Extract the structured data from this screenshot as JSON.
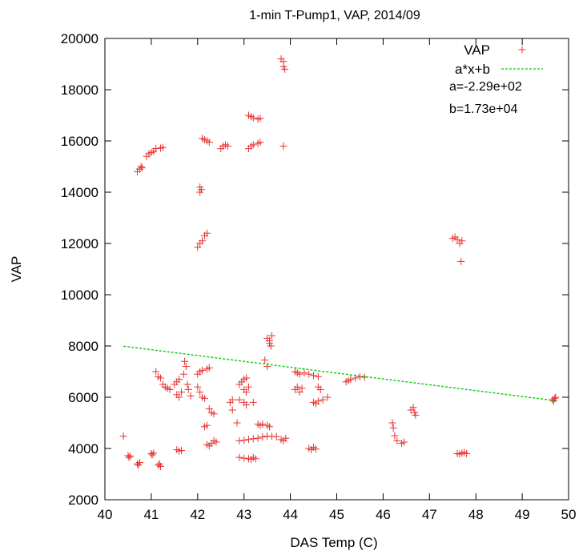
{
  "chart_data": {
    "type": "scatter",
    "title": "1-min T-Pump1, VAP, 2014/09",
    "xlabel": "DAS Temp (C)",
    "ylabel": "VAP",
    "xlim": [
      40,
      50
    ],
    "ylim": [
      2000,
      20000
    ],
    "xticks": [
      "40",
      "41",
      "42",
      "43",
      "44",
      "45",
      "46",
      "47",
      "48",
      "49",
      "50"
    ],
    "yticks": [
      "2000",
      "4000",
      "6000",
      "8000",
      "10000",
      "12000",
      "14000",
      "16000",
      "18000",
      "20000"
    ],
    "grid": false,
    "legend_position": "top-right",
    "series": [
      {
        "name": "VAP",
        "marker": "plus",
        "color": "#e83030",
        "points": [
          [
            40.4,
            4480
          ],
          [
            40.5,
            3720
          ],
          [
            40.52,
            3650
          ],
          [
            40.55,
            3700
          ],
          [
            40.7,
            3400
          ],
          [
            40.72,
            3350
          ],
          [
            40.75,
            3450
          ],
          [
            41.0,
            3800
          ],
          [
            41.02,
            3750
          ],
          [
            41.05,
            3820
          ],
          [
            41.15,
            3350
          ],
          [
            41.2,
            3300
          ],
          [
            41.18,
            3400
          ],
          [
            40.7,
            14800
          ],
          [
            40.75,
            14900
          ],
          [
            40.8,
            14950
          ],
          [
            40.78,
            15000
          ],
          [
            40.9,
            15400
          ],
          [
            40.95,
            15500
          ],
          [
            41.0,
            15550
          ],
          [
            41.05,
            15600
          ],
          [
            41.1,
            15700
          ],
          [
            41.2,
            15720
          ],
          [
            41.25,
            15750
          ],
          [
            41.1,
            7000
          ],
          [
            41.15,
            6800
          ],
          [
            41.2,
            6750
          ],
          [
            41.25,
            6500
          ],
          [
            41.3,
            6400
          ],
          [
            41.35,
            6350
          ],
          [
            41.4,
            6300
          ],
          [
            41.5,
            6500
          ],
          [
            41.55,
            6600
          ],
          [
            41.6,
            6700
          ],
          [
            41.55,
            6100
          ],
          [
            41.6,
            6000
          ],
          [
            41.65,
            6200
          ],
          [
            41.55,
            3950
          ],
          [
            41.6,
            3900
          ],
          [
            41.65,
            3920
          ],
          [
            41.7,
            6900
          ],
          [
            41.75,
            7200
          ],
          [
            41.72,
            7400
          ],
          [
            41.78,
            6500
          ],
          [
            41.8,
            6300
          ],
          [
            41.85,
            6050
          ],
          [
            42.0,
            6900
          ],
          [
            42.05,
            7000
          ],
          [
            42.1,
            7050
          ],
          [
            42.2,
            7100
          ],
          [
            42.25,
            7150
          ],
          [
            42.0,
            6400
          ],
          [
            42.05,
            6200
          ],
          [
            42.1,
            6000
          ],
          [
            42.15,
            5950
          ],
          [
            42.15,
            4850
          ],
          [
            42.2,
            4900
          ],
          [
            42.2,
            4150
          ],
          [
            42.25,
            4100
          ],
          [
            42.3,
            4200
          ],
          [
            42.35,
            4300
          ],
          [
            42.4,
            4250
          ],
          [
            42.25,
            5550
          ],
          [
            42.3,
            5400
          ],
          [
            42.35,
            5350
          ],
          [
            42.0,
            11850
          ],
          [
            42.05,
            12000
          ],
          [
            42.1,
            12100
          ],
          [
            42.15,
            12300
          ],
          [
            42.2,
            12400
          ],
          [
            42.05,
            14000
          ],
          [
            42.05,
            14200
          ],
          [
            42.08,
            14100
          ],
          [
            42.1,
            16100
          ],
          [
            42.15,
            16050
          ],
          [
            42.2,
            16000
          ],
          [
            42.25,
            15950
          ],
          [
            42.5,
            15700
          ],
          [
            42.55,
            15800
          ],
          [
            42.6,
            15850
          ],
          [
            42.65,
            15800
          ],
          [
            42.7,
            5800
          ],
          [
            42.75,
            5900
          ],
          [
            42.75,
            5500
          ],
          [
            42.85,
            5000
          ],
          [
            42.9,
            6500
          ],
          [
            42.95,
            6600
          ],
          [
            43.0,
            6700
          ],
          [
            43.05,
            6750
          ],
          [
            43.0,
            6300
          ],
          [
            43.05,
            6200
          ],
          [
            43.1,
            6400
          ],
          [
            42.9,
            5900
          ],
          [
            43.0,
            5800
          ],
          [
            43.05,
            5700
          ],
          [
            43.2,
            5800
          ],
          [
            42.9,
            4300
          ],
          [
            43.0,
            4320
          ],
          [
            43.1,
            4350
          ],
          [
            43.2,
            4380
          ],
          [
            43.3,
            4400
          ],
          [
            43.4,
            4450
          ],
          [
            43.5,
            4480
          ],
          [
            43.6,
            4470
          ],
          [
            43.7,
            4460
          ],
          [
            42.9,
            3650
          ],
          [
            43.0,
            3620
          ],
          [
            43.1,
            3600
          ],
          [
            43.15,
            3580
          ],
          [
            43.2,
            3650
          ],
          [
            43.25,
            3600
          ],
          [
            43.3,
            4950
          ],
          [
            43.35,
            4900
          ],
          [
            43.4,
            4950
          ],
          [
            43.5,
            4900
          ],
          [
            43.55,
            4850
          ],
          [
            43.1,
            17000
          ],
          [
            43.15,
            16950
          ],
          [
            43.2,
            16900
          ],
          [
            43.3,
            16850
          ],
          [
            43.35,
            16880
          ],
          [
            43.1,
            15700
          ],
          [
            43.15,
            15800
          ],
          [
            43.2,
            15850
          ],
          [
            43.3,
            15900
          ],
          [
            43.35,
            15950
          ],
          [
            43.45,
            7450
          ],
          [
            43.5,
            7200
          ],
          [
            43.5,
            8300
          ],
          [
            43.55,
            8200
          ],
          [
            43.55,
            8100
          ],
          [
            43.6,
            8400
          ],
          [
            43.58,
            8000
          ],
          [
            43.8,
            19200
          ],
          [
            43.85,
            19100
          ],
          [
            43.85,
            18900
          ],
          [
            43.88,
            18800
          ],
          [
            43.85,
            15800
          ],
          [
            43.8,
            4350
          ],
          [
            43.85,
            4300
          ],
          [
            43.9,
            4400
          ],
          [
            44.1,
            7000
          ],
          [
            44.15,
            6950
          ],
          [
            44.2,
            6900
          ],
          [
            44.3,
            6950
          ],
          [
            44.4,
            6900
          ],
          [
            44.5,
            6850
          ],
          [
            44.6,
            6800
          ],
          [
            44.1,
            6300
          ],
          [
            44.15,
            6400
          ],
          [
            44.2,
            6200
          ],
          [
            44.25,
            6350
          ],
          [
            44.4,
            4000
          ],
          [
            44.45,
            3950
          ],
          [
            44.5,
            4050
          ],
          [
            44.55,
            3980
          ],
          [
            44.5,
            5800
          ],
          [
            44.55,
            5750
          ],
          [
            44.6,
            5850
          ],
          [
            44.7,
            5900
          ],
          [
            44.8,
            6000
          ],
          [
            44.6,
            6400
          ],
          [
            44.65,
            6300
          ],
          [
            45.2,
            6600
          ],
          [
            45.25,
            6650
          ],
          [
            45.3,
            6700
          ],
          [
            45.4,
            6750
          ],
          [
            45.5,
            6800
          ],
          [
            45.6,
            6780
          ],
          [
            46.2,
            5000
          ],
          [
            46.22,
            4800
          ],
          [
            46.25,
            4500
          ],
          [
            46.3,
            4300
          ],
          [
            46.4,
            4200
          ],
          [
            46.45,
            4250
          ],
          [
            46.6,
            5500
          ],
          [
            46.65,
            5600
          ],
          [
            46.68,
            5400
          ],
          [
            46.7,
            5300
          ],
          [
            47.5,
            12200
          ],
          [
            47.55,
            12250
          ],
          [
            47.6,
            12150
          ],
          [
            47.65,
            12000
          ],
          [
            47.68,
            11300
          ],
          [
            47.7,
            12100
          ],
          [
            47.6,
            3800
          ],
          [
            47.65,
            3780
          ],
          [
            47.7,
            3820
          ],
          [
            47.75,
            3850
          ],
          [
            47.8,
            3800
          ],
          [
            49.65,
            5900
          ],
          [
            49.7,
            5950
          ],
          [
            49.68,
            5850
          ],
          [
            49.72,
            6000
          ]
        ]
      },
      {
        "name": "a*x+b",
        "type": "line",
        "color": "#00cc00",
        "x": [
          40.4,
          49.7
        ],
        "y": [
          7990,
          5870
        ]
      }
    ],
    "annotations": [
      "a=-2.29e+02",
      "b=1.73e+04"
    ]
  }
}
